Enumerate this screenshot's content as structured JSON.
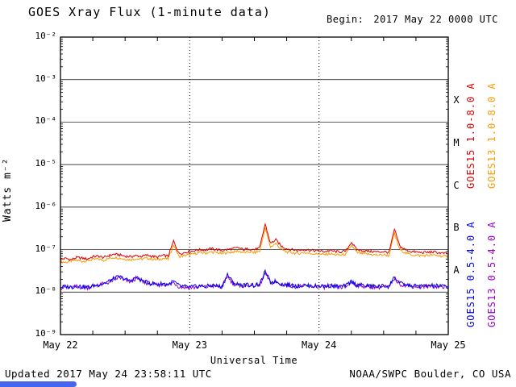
{
  "header": {
    "title": "GOES Xray Flux (1-minute data)",
    "begin_label": "Begin:",
    "begin_value": "2017 May 22 0000 UTC"
  },
  "axes": {
    "ylabel": "Watts m⁻²",
    "xlabel": "Universal Time",
    "flux_classes": [
      {
        "label": "X",
        "exp": -3.5
      },
      {
        "label": "M",
        "exp": -4.5
      },
      {
        "label": "C",
        "exp": -5.5
      },
      {
        "label": "B",
        "exp": -6.5
      },
      {
        "label": "A",
        "exp": -7.5
      }
    ]
  },
  "legend": [
    {
      "label": "GOES15 1.0-8.0 A",
      "color": "#e00000",
      "column": 0,
      "row": 0
    },
    {
      "label": "GOES13 1.0-8.0 A",
      "color": "#ff9900",
      "column": 1,
      "row": 0
    },
    {
      "label": "GOES15 0.5-4.0 A",
      "color": "#0000ee",
      "column": 0,
      "row": 1
    },
    {
      "label": "GOES13 0.5-4.0 A",
      "color": "#9900cc",
      "column": 1,
      "row": 1
    }
  ],
  "footer": {
    "updated": "Updated 2017 May 24 23:58:11 UTC",
    "credit": "NOAA/SWPC Boulder, CO USA"
  },
  "chart_data": {
    "type": "line",
    "title": "GOES Xray Flux (1-minute data)",
    "xlabel": "Universal Time",
    "ylabel": "Watts m⁻²",
    "ylog": true,
    "ylim": [
      1e-09,
      0.01
    ],
    "x_unit": "hours since 2017 May 22 0000 UTC",
    "x_range": [
      0,
      72
    ],
    "x_ticks": [
      0,
      24,
      48,
      72
    ],
    "x_tick_labels": [
      "May 22",
      "May 23",
      "May 24",
      "May 25"
    ],
    "y_tick_exponents": [
      -2,
      -3,
      -4,
      -5,
      -6,
      -7,
      -8,
      -9
    ],
    "y_tick_labels": [
      "10⁻²",
      "10⁻³",
      "10⁻⁴",
      "10⁻⁵",
      "10⁻⁶",
      "10⁻⁷",
      "10⁻⁸",
      "10⁻⁹"
    ],
    "grid": {
      "horizontal_decades": [
        -3,
        -4,
        -5,
        -6,
        -7,
        -8
      ],
      "vertical_dotted_hours": [
        24,
        48
      ]
    },
    "x": [
      0,
      1,
      2,
      3,
      4,
      5,
      6,
      7,
      8,
      9,
      10,
      11,
      12,
      13,
      14,
      15,
      16,
      17,
      18,
      19,
      20,
      21,
      22,
      23,
      24,
      25,
      26,
      27,
      28,
      29,
      30,
      31,
      32,
      33,
      34,
      35,
      36,
      37,
      38,
      39,
      40,
      41,
      42,
      43,
      44,
      45,
      46,
      47,
      48,
      49,
      50,
      51,
      52,
      53,
      54,
      55,
      56,
      57,
      58,
      59,
      60,
      61,
      62,
      63,
      64,
      65,
      66,
      67,
      68,
      69,
      70,
      71,
      72
    ],
    "series": [
      {
        "name": "GOES13 1.0-8.0 A",
        "color": "#ff9900",
        "y": [
          5.2e-08,
          5e-08,
          5.4e-08,
          5.6e-08,
          5.3e-08,
          5.5e-08,
          5.8e-08,
          6e-08,
          5.6e-08,
          6.2e-08,
          6.6e-08,
          6.3e-08,
          6e-08,
          5.8e-08,
          6.1e-08,
          5.9e-08,
          6.3e-08,
          6e-08,
          5.7e-08,
          6.2e-08,
          6e-08,
          1.3e-07,
          6.8e-08,
          7.2e-08,
          7.6e-08,
          8e-08,
          8.5e-08,
          8.3e-08,
          8.8e-08,
          8.5e-08,
          8e-08,
          8.5e-08,
          8.8e-08,
          9.2e-08,
          8.5e-08,
          8.8e-08,
          8.5e-08,
          9.2e-08,
          3.2e-07,
          1.15e-07,
          1.4e-07,
          1e-07,
          8.8e-08,
          8.5e-08,
          8e-08,
          8.5e-08,
          8.2e-08,
          8e-08,
          7.8e-08,
          7.6e-08,
          8e-08,
          7.6e-08,
          7.4e-08,
          7.8e-08,
          1.25e-07,
          8.5e-08,
          8e-08,
          7.8e-08,
          7.6e-08,
          7.4e-08,
          7.6e-08,
          7.2e-08,
          2.4e-07,
          1e-07,
          8.5e-08,
          7.6e-08,
          7.4e-08,
          7.2e-08,
          7.3e-08,
          7.4e-08,
          7.2e-08,
          7e-08,
          6.8e-08
        ]
      },
      {
        "name": "GOES15 1.0-8.0 A",
        "color": "#e00000",
        "y": [
          6e-08,
          6.2e-08,
          5.8e-08,
          6.5e-08,
          6.3e-08,
          6e-08,
          6.8e-08,
          7e-08,
          6.5e-08,
          7.2e-08,
          7.8e-08,
          7.5e-08,
          7e-08,
          6.8e-08,
          7.2e-08,
          6.9e-08,
          7.4e-08,
          7e-08,
          6.6e-08,
          7.3e-08,
          7e-08,
          1.6e-07,
          8e-08,
          8.5e-08,
          9e-08,
          9.5e-08,
          1e-07,
          9.8e-08,
          1.05e-07,
          1e-07,
          9.5e-08,
          1e-07,
          1.05e-07,
          1.1e-07,
          1e-07,
          1.05e-07,
          1e-07,
          1.1e-07,
          4e-07,
          1.4e-07,
          1.7e-07,
          1.2e-07,
          1.05e-07,
          1e-07,
          9.5e-08,
          1e-07,
          9.8e-08,
          9.5e-08,
          9.2e-08,
          9e-08,
          9.5e-08,
          9e-08,
          8.8e-08,
          9.2e-08,
          1.5e-07,
          1e-07,
          9.5e-08,
          9.2e-08,
          9e-08,
          8.8e-08,
          9e-08,
          8.5e-08,
          3e-07,
          1.2e-07,
          1e-07,
          9e-08,
          8.8e-08,
          8.5e-08,
          8.6e-08,
          8.8e-08,
          8.5e-08,
          8.2e-08,
          8e-08
        ]
      },
      {
        "name": "GOES13 0.5-4.0 A",
        "color": "#9900cc",
        "y": [
          1.25e-08,
          1.3e-08,
          1.28e-08,
          1.35e-08,
          1.3e-08,
          1.28e-08,
          1.35e-08,
          1.45e-08,
          1.55e-08,
          1.7e-08,
          2e-08,
          2.2e-08,
          1.9e-08,
          1.75e-08,
          2.1e-08,
          1.85e-08,
          1.65e-08,
          1.55e-08,
          1.45e-08,
          1.55e-08,
          1.45e-08,
          1.7e-08,
          1.35e-08,
          1.3e-08,
          1.28e-08,
          1.3e-08,
          1.35e-08,
          1.3e-08,
          1.4e-08,
          1.35e-08,
          1.3e-08,
          2.4e-08,
          1.6e-08,
          1.45e-08,
          1.4e-08,
          1.45e-08,
          1.4e-08,
          1.45e-08,
          2.8e-08,
          1.65e-08,
          1.7e-08,
          1.5e-08,
          1.45e-08,
          1.4e-08,
          1.35e-08,
          1.4e-08,
          1.35e-08,
          1.35e-08,
          1.35e-08,
          1.33e-08,
          1.37e-08,
          1.33e-08,
          1.3e-08,
          1.35e-08,
          1.7e-08,
          1.45e-08,
          1.4e-08,
          1.35e-08,
          1.33e-08,
          1.3e-08,
          1.35e-08,
          1.3e-08,
          2.1e-08,
          1.55e-08,
          1.45e-08,
          1.38e-08,
          1.35e-08,
          1.33e-08,
          1.35e-08,
          1.38e-08,
          1.35e-08,
          1.33e-08,
          1.3e-08
        ]
      },
      {
        "name": "GOES15 0.5-4.0 A",
        "color": "#0000ee",
        "y": [
          1.3e-08,
          1.35e-08,
          1.3e-08,
          1.4e-08,
          1.35e-08,
          1.3e-08,
          1.4e-08,
          1.5e-08,
          1.6e-08,
          1.8e-08,
          2.1e-08,
          2.3e-08,
          2e-08,
          1.8e-08,
          2.2e-08,
          1.9e-08,
          1.7e-08,
          1.6e-08,
          1.5e-08,
          1.6e-08,
          1.5e-08,
          1.8e-08,
          1.4e-08,
          1.35e-08,
          1.3e-08,
          1.35e-08,
          1.4e-08,
          1.35e-08,
          1.45e-08,
          1.4e-08,
          1.35e-08,
          2.6e-08,
          1.7e-08,
          1.5e-08,
          1.45e-08,
          1.5e-08,
          1.45e-08,
          1.5e-08,
          3e-08,
          1.7e-08,
          1.8e-08,
          1.55e-08,
          1.5e-08,
          1.45e-08,
          1.4e-08,
          1.45e-08,
          1.4e-08,
          1.4e-08,
          1.4e-08,
          1.38e-08,
          1.42e-08,
          1.38e-08,
          1.35e-08,
          1.4e-08,
          1.8e-08,
          1.5e-08,
          1.45e-08,
          1.4e-08,
          1.38e-08,
          1.36e-08,
          1.4e-08,
          1.35e-08,
          2.3e-08,
          1.6e-08,
          1.5e-08,
          1.42e-08,
          1.4e-08,
          1.38e-08,
          1.4e-08,
          1.42e-08,
          1.4e-08,
          1.38e-08,
          1.35e-08
        ]
      }
    ]
  }
}
